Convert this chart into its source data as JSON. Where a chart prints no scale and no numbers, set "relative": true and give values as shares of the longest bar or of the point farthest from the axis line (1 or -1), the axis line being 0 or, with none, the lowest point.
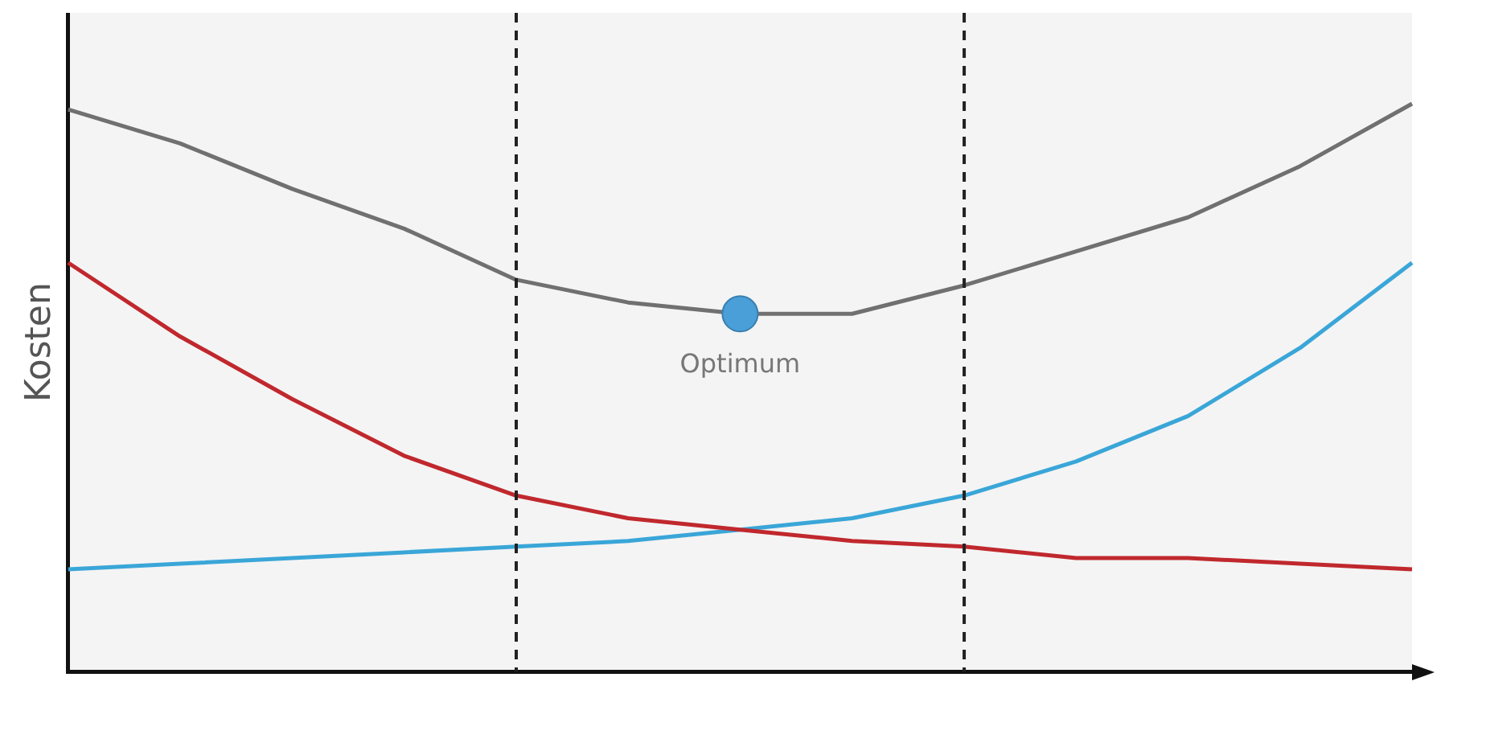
{
  "chart_data": {
    "type": "line",
    "ylabel": "Kosten",
    "relative": true,
    "categories": [
      null,
      null,
      null,
      null,
      null,
      null,
      null,
      null,
      null,
      null,
      null,
      null,
      null
    ],
    "grid": false,
    "marker": "none",
    "line_style": "solid",
    "series": [
      {
        "color": "#707070",
        "values": [
          0.99,
          0.93,
          0.85,
          0.78,
          0.69,
          0.65,
          0.63,
          0.63,
          0.68,
          0.74,
          0.8,
          0.89,
          1
        ]
      },
      {
        "color": "#c0282d",
        "values": [
          0.72,
          0.59,
          0.48,
          0.38,
          0.31,
          0.27,
          0.25,
          0.23,
          0.22,
          0.2,
          0.2,
          0.19,
          0.18
        ]
      },
      {
        "color": "#3aa6d8",
        "values": [
          0.18,
          0.19,
          0.2,
          0.21,
          0.22,
          0.23,
          0.25,
          0.27,
          0.31,
          0.37,
          0.45,
          0.57,
          0.72
        ]
      }
    ],
    "annotations": [
      {
        "text": "Optimum",
        "y": 0.63
      }
    ]
  }
}
